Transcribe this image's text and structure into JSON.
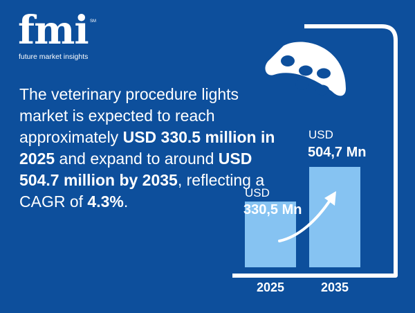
{
  "brand": {
    "wordmark": "fmi",
    "trademark": "SM",
    "tagline": "future market insights"
  },
  "headline": [
    {
      "text": "The veterinary procedure lights market is expected to reach approximately ",
      "bold": false
    },
    {
      "text": "USD 330.5 million in 2025",
      "bold": true
    },
    {
      "text": " and expand to around ",
      "bold": false
    },
    {
      "text": "USD 504.7 million by 2035",
      "bold": true
    },
    {
      "text": ", reflecting a CAGR of ",
      "bold": false
    },
    {
      "text": "4.3%",
      "bold": true
    },
    {
      "text": ".",
      "bold": false
    }
  ],
  "chart_data": {
    "type": "bar",
    "categories": [
      "2025",
      "2035"
    ],
    "values": [
      330.5,
      504.7
    ],
    "value_labels": [
      {
        "unit": "USD",
        "amount": "330,5 Mn"
      },
      {
        "unit": "USD",
        "amount": "504,7 Mn"
      }
    ],
    "title": "",
    "xlabel": "",
    "ylabel": "",
    "ylim": [
      0,
      504.7
    ],
    "grid": false,
    "legend": "none"
  },
  "colors": {
    "background": "#0d4f9c",
    "bar": "#86c3f2",
    "text": "#ffffff"
  },
  "icons": [
    "surgical-light-icon",
    "growth-arrow-icon"
  ]
}
